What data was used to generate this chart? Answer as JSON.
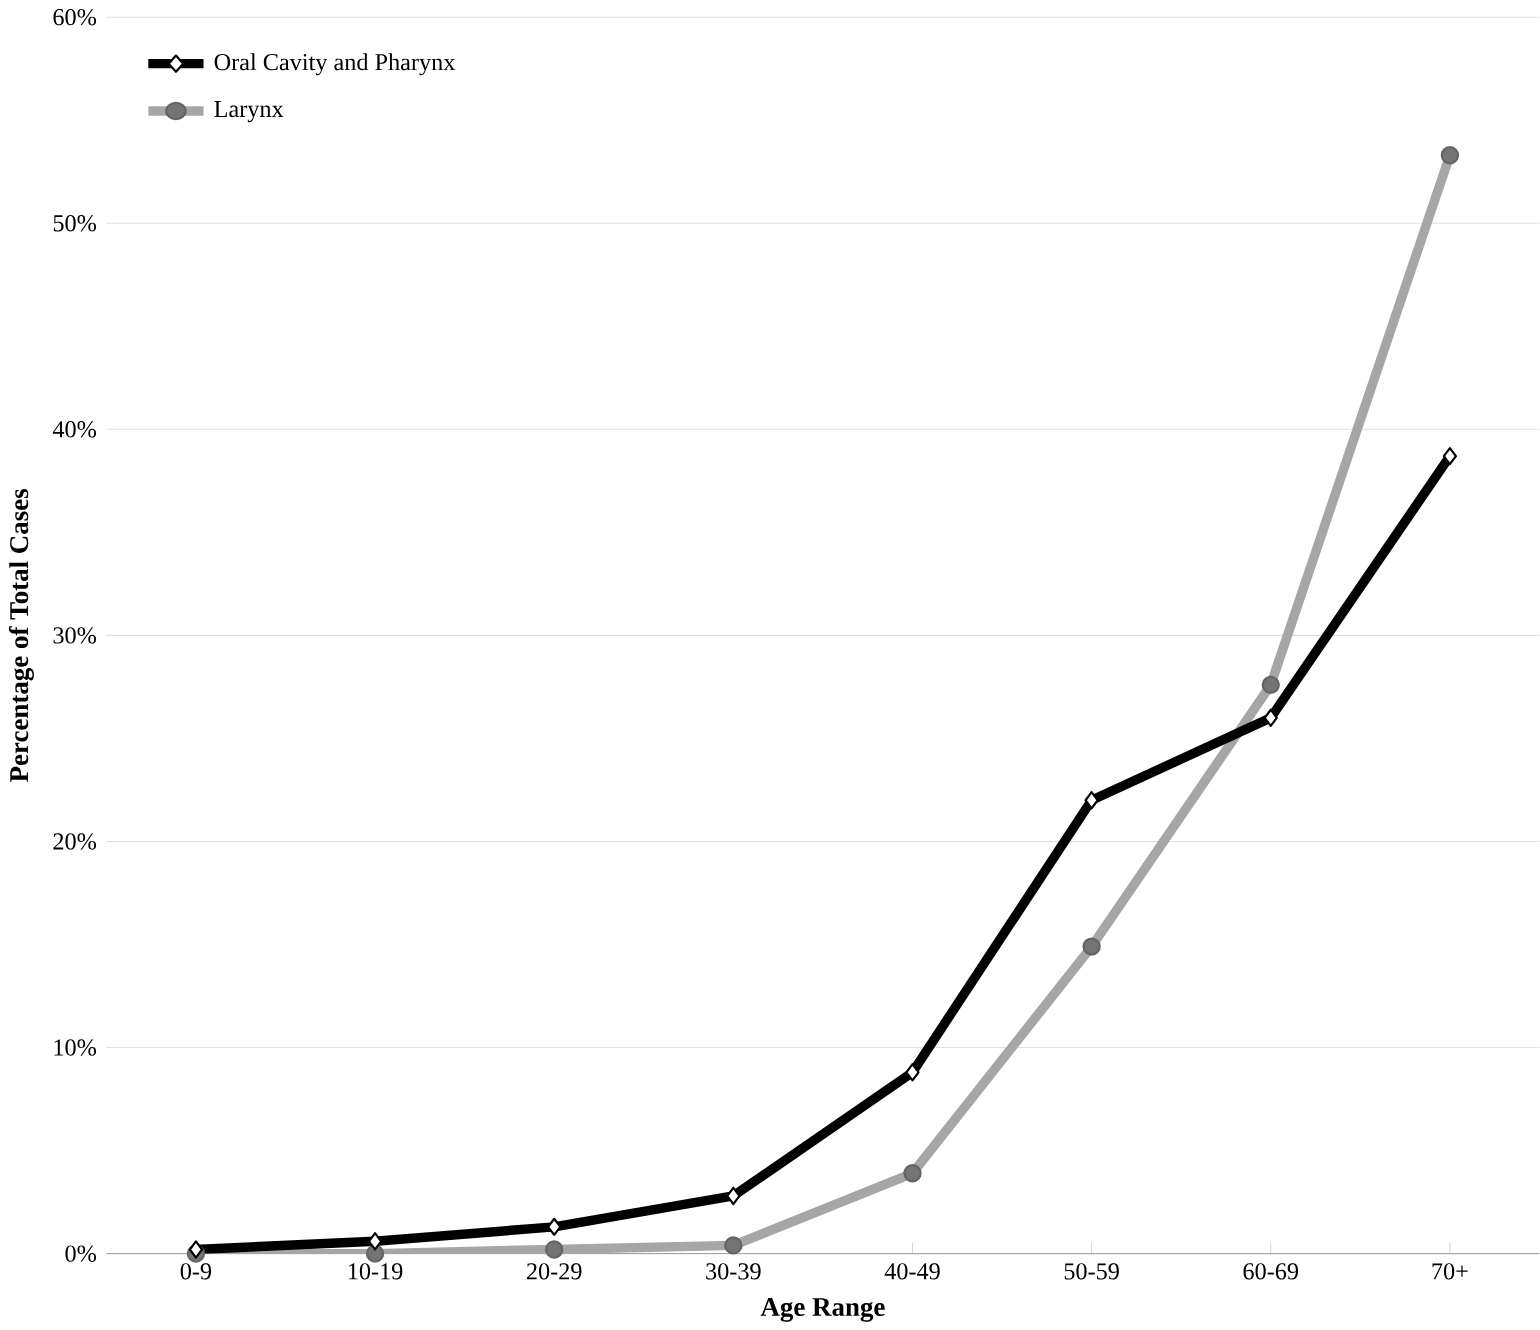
{
  "chart_data": {
    "type": "line",
    "xlabel": "Age Range",
    "ylabel": "Percentage of Total Cases",
    "categories": [
      "0-9",
      "10-19",
      "20-29",
      "30-39",
      "40-49",
      "50-59",
      "60-69",
      "70+"
    ],
    "series": [
      {
        "name": "Oral Cavity and Pharynx",
        "color": "#000000",
        "marker": "diamond",
        "values": [
          0.2,
          0.6,
          1.3,
          2.8,
          8.8,
          22.0,
          26.0,
          38.7
        ]
      },
      {
        "name": "Larynx",
        "color": "#a6a6a6",
        "marker": "circle",
        "values": [
          0.0,
          0.0,
          0.2,
          0.4,
          3.9,
          14.9,
          27.6,
          53.3
        ]
      }
    ],
    "ylim": [
      0,
      60
    ],
    "yticks": [
      {
        "value": 0,
        "label": "0%"
      },
      {
        "value": 10,
        "label": "10%"
      },
      {
        "value": 20,
        "label": "20%"
      },
      {
        "value": 30,
        "label": "30%"
      },
      {
        "value": 40,
        "label": "40%"
      },
      {
        "value": 50,
        "label": "50%"
      },
      {
        "value": 60,
        "label": "60%"
      }
    ],
    "grid": "y",
    "legend": "top left",
    "line_style": "solid"
  }
}
